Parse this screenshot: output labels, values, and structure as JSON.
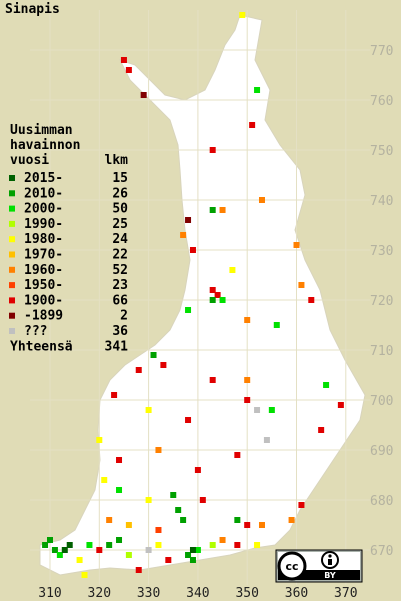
{
  "title": "Sinapis",
  "legend": {
    "heading": [
      "Uusimman",
      "havainnon",
      "vuosi"
    ],
    "count_header": "lkm",
    "items": [
      {
        "label": "2015-",
        "count": 15,
        "color": "#006000"
      },
      {
        "label": "2010-",
        "count": 26,
        "color": "#00a000"
      },
      {
        "label": "2000-",
        "count": 50,
        "color": "#00e000"
      },
      {
        "label": "1990-",
        "count": 25,
        "color": "#b0ff00"
      },
      {
        "label": "1980-",
        "count": 24,
        "color": "#ffff00"
      },
      {
        "label": "1970-",
        "count": 22,
        "color": "#ffc000"
      },
      {
        "label": "1960-",
        "count": 52,
        "color": "#ff8000"
      },
      {
        "label": "1950-",
        "count": 23,
        "color": "#ff4000"
      },
      {
        "label": "1900-",
        "count": 66,
        "color": "#e00000"
      },
      {
        "label": "-1899",
        "count": 2,
        "color": "#800000"
      },
      {
        "label": "???",
        "count": 36,
        "color": "#c0c0c0"
      }
    ],
    "total_label": "Yhteensä",
    "total": 341
  },
  "x_ticks": [
    310,
    320,
    330,
    340,
    350,
    360,
    370
  ],
  "y_ticks": [
    670,
    680,
    690,
    700,
    710,
    720,
    730,
    740,
    750,
    760,
    770
  ],
  "points": [
    [
      349,
      777,
      4
    ],
    [
      325,
      768,
      8
    ],
    [
      326,
      766,
      8
    ],
    [
      329,
      761,
      9
    ],
    [
      352,
      762,
      2
    ],
    [
      343,
      750,
      8
    ],
    [
      351,
      755,
      8
    ],
    [
      343,
      738,
      1
    ],
    [
      345,
      738,
      6
    ],
    [
      338,
      736,
      9
    ],
    [
      337,
      733,
      6
    ],
    [
      339,
      730,
      8
    ],
    [
      347,
      726,
      4
    ],
    [
      360,
      731,
      6
    ],
    [
      353,
      740,
      6
    ],
    [
      343,
      722,
      8
    ],
    [
      344,
      721,
      8
    ],
    [
      343,
      720,
      1
    ],
    [
      345,
      720,
      2
    ],
    [
      338,
      718,
      2
    ],
    [
      350,
      716,
      6
    ],
    [
      356,
      715,
      2
    ],
    [
      363,
      720,
      8
    ],
    [
      361,
      723,
      6
    ],
    [
      331,
      709,
      1
    ],
    [
      333,
      707,
      8
    ],
    [
      328,
      706,
      8
    ],
    [
      323,
      701,
      8
    ],
    [
      330,
      698,
      4
    ],
    [
      338,
      696,
      8
    ],
    [
      350,
      700,
      8
    ],
    [
      352,
      698,
      10
    ],
    [
      355,
      698,
      2
    ],
    [
      366,
      703,
      2
    ],
    [
      369,
      699,
      8
    ],
    [
      343,
      704,
      8
    ],
    [
      350,
      704,
      6
    ],
    [
      320,
      692,
      4
    ],
    [
      324,
      688,
      8
    ],
    [
      332,
      690,
      6
    ],
    [
      340,
      686,
      8
    ],
    [
      348,
      689,
      8
    ],
    [
      354,
      692,
      10
    ],
    [
      365,
      694,
      8
    ],
    [
      321,
      684,
      4
    ],
    [
      324,
      682,
      2
    ],
    [
      330,
      680,
      4
    ],
    [
      335,
      681,
      1
    ],
    [
      336,
      678,
      1
    ],
    [
      337,
      676,
      1
    ],
    [
      341,
      680,
      8
    ],
    [
      348,
      676,
      1
    ],
    [
      350,
      675,
      8
    ],
    [
      353,
      675,
      6
    ],
    [
      359,
      676,
      6
    ],
    [
      361,
      679,
      8
    ],
    [
      309,
      671,
      1
    ],
    [
      310,
      672,
      1
    ],
    [
      311,
      670,
      1
    ],
    [
      312,
      669,
      2
    ],
    [
      314,
      671,
      0
    ],
    [
      316,
      668,
      4
    ],
    [
      318,
      671,
      2
    ],
    [
      320,
      670,
      8
    ],
    [
      322,
      671,
      1
    ],
    [
      324,
      672,
      1
    ],
    [
      326,
      669,
      3
    ],
    [
      328,
      666,
      8
    ],
    [
      330,
      670,
      10
    ],
    [
      332,
      671,
      4
    ],
    [
      334,
      668,
      8
    ],
    [
      338,
      669,
      1
    ],
    [
      339,
      668,
      1
    ],
    [
      340,
      670,
      2
    ],
    [
      343,
      671,
      3
    ],
    [
      345,
      672,
      6
    ],
    [
      348,
      671,
      8
    ],
    [
      352,
      671,
      4
    ],
    [
      322,
      676,
      6
    ],
    [
      326,
      675,
      5
    ],
    [
      332,
      674,
      7
    ],
    [
      317,
      665,
      4
    ],
    [
      313,
      670,
      0
    ],
    [
      339,
      670,
      0
    ]
  ],
  "badge": {
    "cc": "cc",
    "by": "BY"
  }
}
